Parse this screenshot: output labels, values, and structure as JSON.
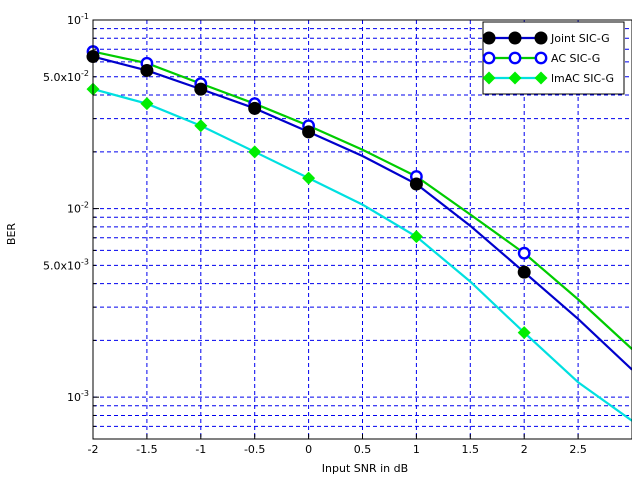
{
  "chart_data": {
    "type": "line",
    "xlabel": "Input SNR in dB",
    "ylabel": "BER",
    "xlim": [
      -2,
      3
    ],
    "ylim": [
      0.0006,
      0.1
    ],
    "y_scale": "log",
    "grid": true,
    "legend_position": "top-right",
    "x_ticks": [
      -2,
      -1.5,
      -1,
      -0.5,
      0,
      0.5,
      1,
      1.5,
      2,
      2.5
    ],
    "x_tick_labels": [
      "-2",
      "-1.5",
      "-1",
      "-0.5",
      "0",
      "0.5",
      "1",
      "1.5",
      "2",
      "2.5"
    ],
    "y_labeled_ticks": [
      {
        "value": 0.1,
        "base": "10",
        "exp": "-1"
      },
      {
        "value": 0.05,
        "base": "5.0x10",
        "exp": "-2"
      },
      {
        "value": 0.01,
        "base": "10",
        "exp": "-2"
      },
      {
        "value": 0.005,
        "base": "5.0x10",
        "exp": "-3"
      },
      {
        "value": 0.001,
        "base": "10",
        "exp": "-3"
      }
    ],
    "series": [
      {
        "name": "Joint SIC-G",
        "line_color": "#0000cc",
        "marker": "filled-circle",
        "marker_color": "#000000",
        "x": [
          -2,
          -1.5,
          -1,
          -0.5,
          0,
          0.5,
          1,
          1.5,
          2,
          2.5,
          3
        ],
        "y": [
          0.064,
          0.054,
          0.043,
          0.034,
          0.0255,
          0.019,
          0.0135,
          0.0081,
          0.0046,
          0.0026,
          0.0014
        ],
        "marker_x": [
          -2,
          -1.5,
          -1,
          -0.5,
          0,
          1,
          2
        ]
      },
      {
        "name": "AC SIC-G",
        "line_color": "#00cc00",
        "marker": "open-circle",
        "marker_color": "#0000ff",
        "x": [
          -2,
          -1.5,
          -1,
          -0.5,
          0,
          0.5,
          1,
          1.5,
          2,
          2.5,
          3
        ],
        "y": [
          0.068,
          0.059,
          0.046,
          0.036,
          0.0275,
          0.0205,
          0.0148,
          0.0093,
          0.0058,
          0.0033,
          0.0018
        ],
        "marker_x": [
          -2,
          -1.5,
          -1,
          -0.5,
          0,
          1,
          2
        ]
      },
      {
        "name": "lmAC SIC-G",
        "line_color": "#00e0e0",
        "marker": "filled-diamond",
        "marker_color": "#00ee00",
        "x": [
          -2,
          -1.5,
          -1,
          -0.5,
          0,
          0.5,
          1,
          1.5,
          2,
          2.5,
          3
        ],
        "y": [
          0.043,
          0.036,
          0.0275,
          0.02,
          0.0145,
          0.0105,
          0.0071,
          0.0041,
          0.0022,
          0.0012,
          0.00075
        ],
        "marker_x": [
          -2,
          -1.5,
          -1,
          -0.5,
          0,
          1,
          2
        ]
      }
    ]
  }
}
